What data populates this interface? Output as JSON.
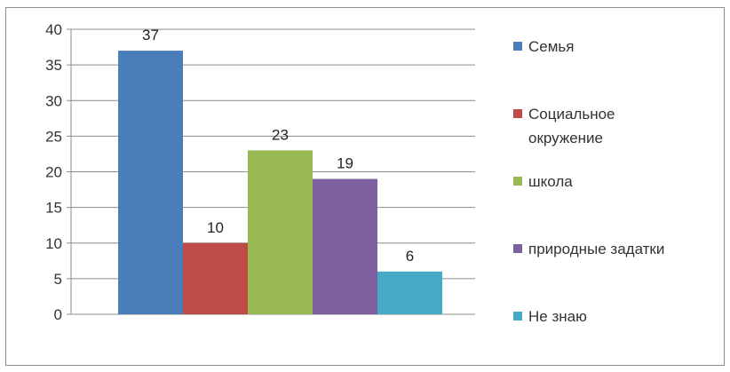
{
  "chart_data": {
    "type": "bar",
    "categories": [
      "Семья",
      "Социальное окружение",
      "школа",
      "природные задатки",
      "Не знаю"
    ],
    "values": [
      37,
      10,
      23,
      19,
      6
    ],
    "colors": [
      "#4a7ebb",
      "#be4b48",
      "#98b954",
      "#7d60a0",
      "#46aac5"
    ],
    "legend_lines": [
      [
        "Семья"
      ],
      [
        "Социальное",
        "окружение"
      ],
      [
        "школа"
      ],
      [
        "природные задатки"
      ],
      [
        "Не знаю"
      ]
    ],
    "ylim": [
      0,
      40
    ],
    "yticks": [
      "0",
      "5",
      "10",
      "15",
      "20",
      "25",
      "30",
      "35",
      "40"
    ],
    "grid": true,
    "legend_position": "right",
    "title": "",
    "xlabel": "",
    "ylabel": ""
  }
}
